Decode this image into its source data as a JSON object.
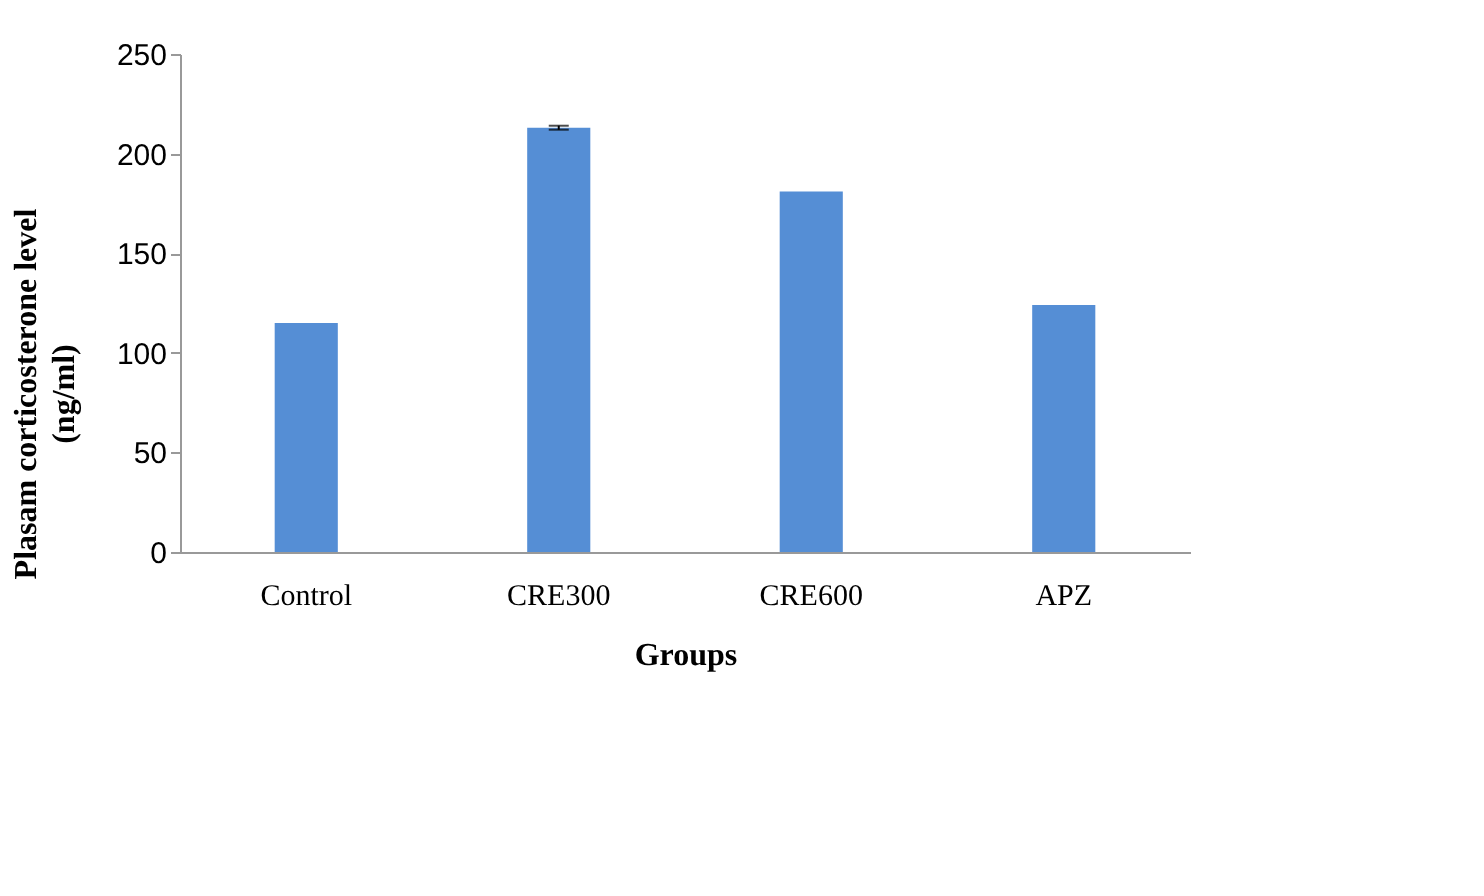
{
  "chart_data": {
    "type": "bar",
    "xlabel": "Groups",
    "ylabel": "Plasam corticosterone level\n(ng/ml)",
    "categories": [
      "Control",
      "CRE300",
      "CRE600",
      "APZ"
    ],
    "series": [
      {
        "color": "#558ed5",
        "values": [
          115,
          213,
          181,
          124
        ],
        "errors": [
          null,
          1,
          null,
          null
        ]
      }
    ],
    "ylim": [
      0,
      250
    ],
    "yticks": [
      0,
      50,
      100,
      150,
      200,
      250
    ],
    "grid": false
  }
}
